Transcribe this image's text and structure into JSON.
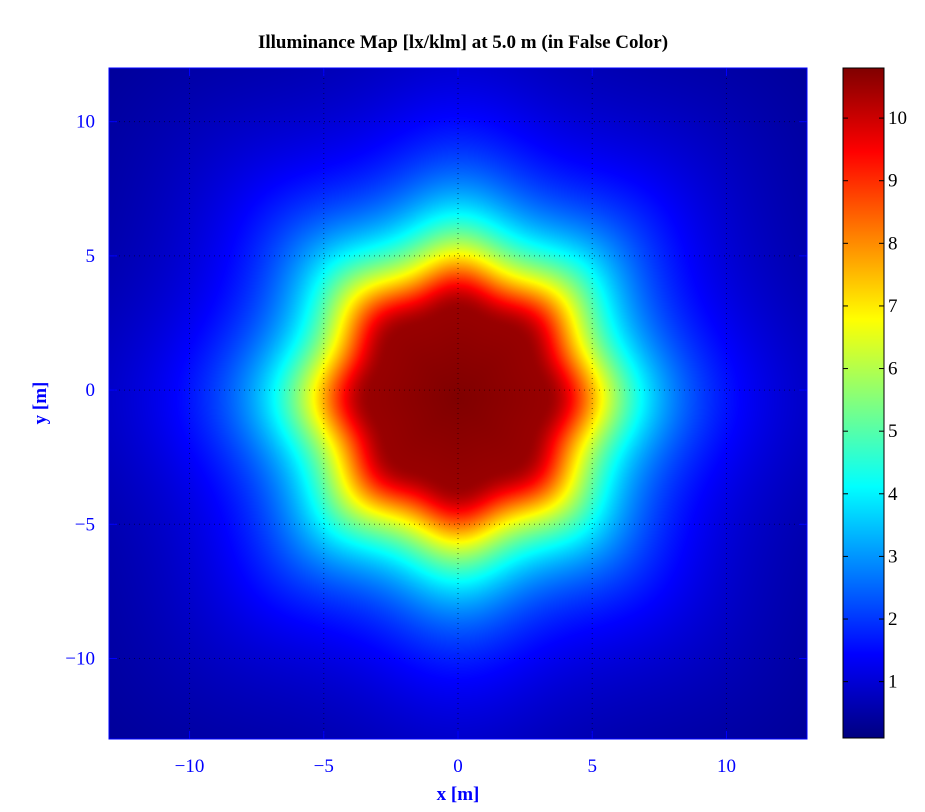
{
  "chart_data": {
    "type": "heatmap",
    "title": "Illuminance Map [lx/klm] at 5.0 m (in False Color)",
    "xlabel": "x [m]",
    "ylabel": "y [m]",
    "xlim": [
      -13,
      13
    ],
    "ylim": [
      -13,
      12
    ],
    "x_ticks": [
      -10,
      -5,
      0,
      5,
      10
    ],
    "y_ticks": [
      -10,
      -5,
      0,
      5,
      10
    ],
    "x_tick_labels": [
      "−10",
      "−5",
      "0",
      "5",
      "10"
    ],
    "y_tick_labels": [
      "−10",
      "−5",
      "0",
      "5",
      "10"
    ],
    "grid": true,
    "colormap": "jet",
    "colorbar": {
      "range": [
        0.1,
        10.8
      ],
      "ticks": [
        1,
        2,
        3,
        4,
        5,
        6,
        7,
        8,
        9,
        10
      ],
      "tick_labels": [
        "1",
        "2",
        "3",
        "4",
        "5",
        "6",
        "7",
        "8",
        "9",
        "10"
      ]
    },
    "peak_value": 10.8,
    "peak_center": [
      0,
      -0.3
    ],
    "plateau_radius": 3.1,
    "symmetry_lobes": 8,
    "axis_color": "#0000ff"
  }
}
